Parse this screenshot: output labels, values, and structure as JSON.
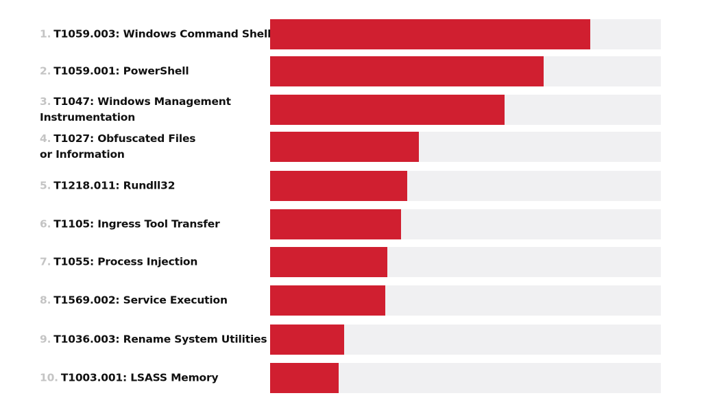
{
  "chart_data": {
    "type": "bar",
    "orientation": "horizontal",
    "title": "",
    "xlabel": "",
    "ylabel": "",
    "xlim": [
      0,
      1
    ],
    "grid": false,
    "bar_color": "#d01f30",
    "track_color": "#f0f0f2",
    "rank_color": "#c4c4c4",
    "categories": [
      {
        "rank": "1.",
        "label": "T1059.003: Windows Command Shell"
      },
      {
        "rank": "2.",
        "label": "T1059.001: PowerShell"
      },
      {
        "rank": "3.",
        "label": "T1047: Windows Management\n Instrumentation"
      },
      {
        "rank": "4.",
        "label": "T1027: Obfuscated Files\n or Information"
      },
      {
        "rank": "5.",
        "label": "T1218.011: Rundll32"
      },
      {
        "rank": "6.",
        "label": "T1105: Ingress Tool Transfer"
      },
      {
        "rank": "7.",
        "label": "T1055: Process Injection"
      },
      {
        "rank": "8.",
        "label": "T1569.002: Service Execution"
      },
      {
        "rank": "9.",
        "label": "T1036.003: Rename System Utilities"
      },
      {
        "rank": "10.",
        "label": "T1003.001: LSASS Memory"
      }
    ],
    "values": [
      0.82,
      0.7,
      0.6,
      0.38,
      0.35,
      0.335,
      0.3,
      0.295,
      0.19,
      0.175
    ]
  }
}
